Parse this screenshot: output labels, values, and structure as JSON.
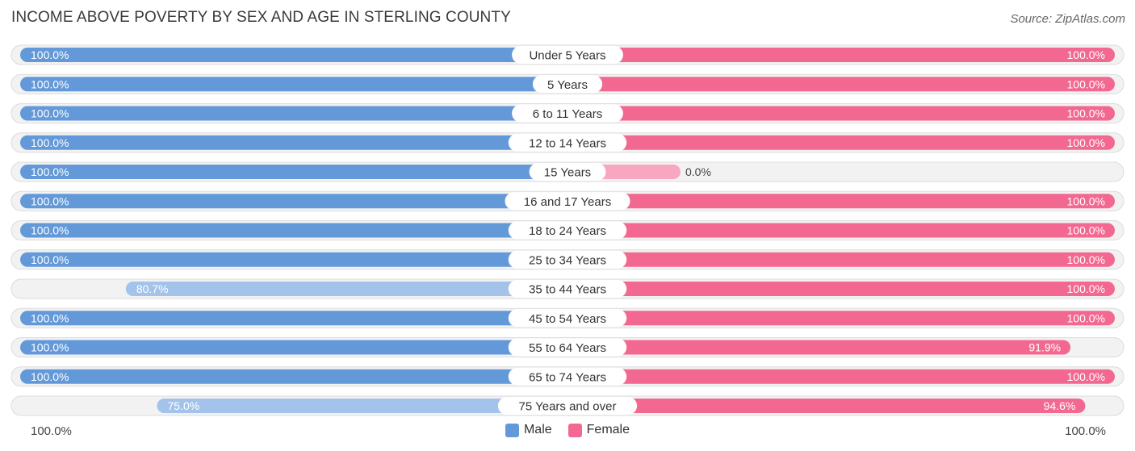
{
  "chart_data": {
    "type": "bar",
    "orientation": "horizontal-diverging",
    "title": "INCOME ABOVE POVERTY BY SEX AND AGE IN STERLING COUNTY",
    "source": "Source: ZipAtlas.com",
    "categories": [
      "Under 5 Years",
      "5 Years",
      "6 to 11 Years",
      "12 to 14 Years",
      "15 Years",
      "16 and 17 Years",
      "18 to 24 Years",
      "25 to 34 Years",
      "35 to 44 Years",
      "45 to 54 Years",
      "55 to 64 Years",
      "65 to 74 Years",
      "75 Years and over"
    ],
    "series": [
      {
        "name": "Male",
        "values": [
          100.0,
          100.0,
          100.0,
          100.0,
          100.0,
          100.0,
          100.0,
          100.0,
          80.7,
          100.0,
          100.0,
          100.0,
          75.0
        ],
        "labels": [
          "100.0%",
          "100.0%",
          "100.0%",
          "100.0%",
          "100.0%",
          "100.0%",
          "100.0%",
          "100.0%",
          "80.7%",
          "100.0%",
          "100.0%",
          "100.0%",
          "75.0%"
        ]
      },
      {
        "name": "Female",
        "values": [
          100.0,
          100.0,
          100.0,
          100.0,
          0.0,
          100.0,
          100.0,
          100.0,
          100.0,
          100.0,
          91.9,
          100.0,
          94.6
        ],
        "labels": [
          "100.0%",
          "100.0%",
          "100.0%",
          "100.0%",
          "0.0%",
          "100.0%",
          "100.0%",
          "100.0%",
          "100.0%",
          "100.0%",
          "91.9%",
          "100.0%",
          "94.6%"
        ]
      }
    ],
    "xlim": [
      0,
      100
    ],
    "axis_left_label": "100.0%",
    "axis_right_label": "100.0%",
    "legend_position": "bottom-center"
  },
  "colors": {
    "male_strong": "#6399d9",
    "male_light": "#a3c3ea",
    "female_strong": "#f26891",
    "female_light": "#f7a7c0",
    "row_bg": "#f2f2f2",
    "row_border": "#dcdcdc"
  }
}
